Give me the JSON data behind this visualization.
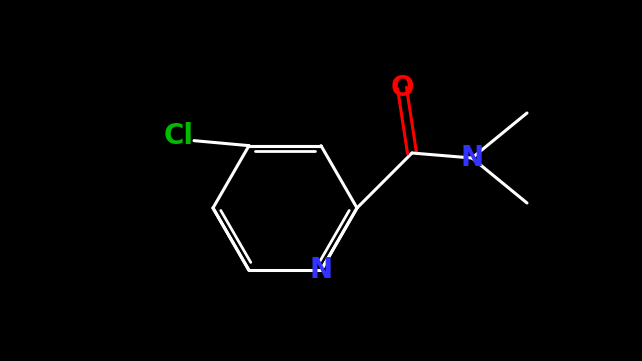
{
  "background_color": "#000000",
  "bond_color": "#ffffff",
  "colors": {
    "O": "#ff0000",
    "N": "#3333ff",
    "Cl": "#00bb00",
    "C": "#ffffff"
  },
  "lw": 2.2,
  "lw_inner": 2.0,
  "font_size": 20,
  "font_size_small": 17,
  "figsize": [
    6.42,
    3.61
  ],
  "dpi": 100
}
